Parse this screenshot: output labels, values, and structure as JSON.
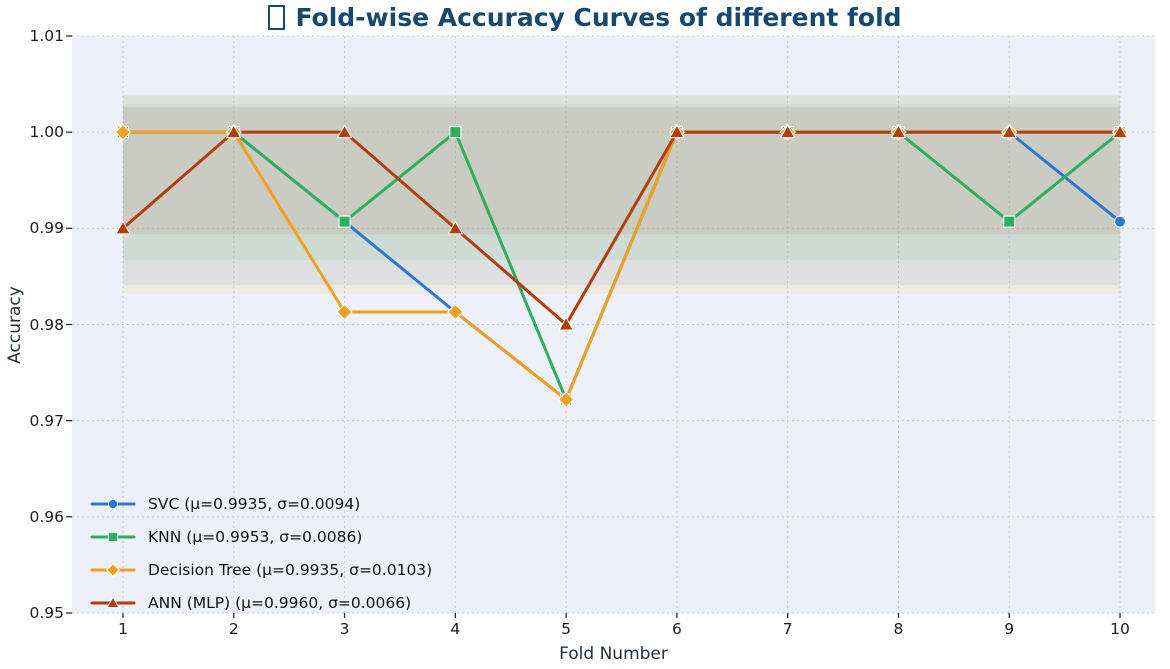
{
  "title": {
    "text": "Fold-wise Accuracy Curves of different fold",
    "color": "#17496f",
    "leading_glyph": "missing-emoji-box"
  },
  "axes": {
    "x_label": "Fold Number",
    "y_label": "Accuracy",
    "x_ticks": [
      1,
      2,
      3,
      4,
      5,
      6,
      7,
      8,
      9,
      10
    ],
    "y_ticks": [
      "0.95",
      "0.96",
      "0.97",
      "0.98",
      "0.99",
      "1.00",
      "1.01"
    ],
    "y_min": 0.95,
    "y_max": 1.01
  },
  "chart_data": {
    "type": "line",
    "title": "Fold-wise Accuracy Curves of different fold",
    "xlabel": "Fold Number",
    "ylabel": "Accuracy",
    "ylim": [
      0.95,
      1.01
    ],
    "grid": true,
    "legend_position": "lower left",
    "bands": "each series has a shaded horizontal band spanning mean ± std across folds 1-10",
    "x": [
      1,
      2,
      3,
      4,
      5,
      6,
      7,
      8,
      9,
      10
    ],
    "series": [
      {
        "name": "SVC",
        "legend": "SVC (μ=0.9935, σ=0.0094)",
        "color": "#2b77d6",
        "marker": "circle",
        "mean": 0.9935,
        "std": 0.0094,
        "values": [
          1.0,
          1.0,
          0.9907,
          0.9813,
          0.9722,
          1.0,
          1.0,
          1.0,
          1.0,
          0.9907
        ]
      },
      {
        "name": "KNN",
        "legend": "KNN (μ=0.9953, σ=0.0086)",
        "color": "#2caf5f",
        "marker": "square",
        "mean": 0.9953,
        "std": 0.0086,
        "values": [
          1.0,
          1.0,
          0.9907,
          1.0,
          0.9722,
          1.0,
          1.0,
          1.0,
          0.9907,
          1.0
        ]
      },
      {
        "name": "Decision Tree",
        "legend": "Decision Tree (μ=0.9935, σ=0.0103)",
        "color": "#f39f21",
        "marker": "diamond",
        "mean": 0.9935,
        "std": 0.0103,
        "values": [
          1.0,
          1.0,
          0.9813,
          0.9813,
          0.9722,
          1.0,
          1.0,
          1.0,
          1.0,
          1.0
        ]
      },
      {
        "name": "ANN (MLP)",
        "legend": "ANN (MLP) (μ=0.9960, σ=0.0066)",
        "color": "#b23e10",
        "marker": "triangle",
        "mean": 0.996,
        "std": 0.0066,
        "values": [
          0.99,
          1.0,
          1.0,
          0.99,
          0.98,
          1.0,
          1.0,
          1.0,
          1.0,
          1.0
        ]
      }
    ]
  }
}
